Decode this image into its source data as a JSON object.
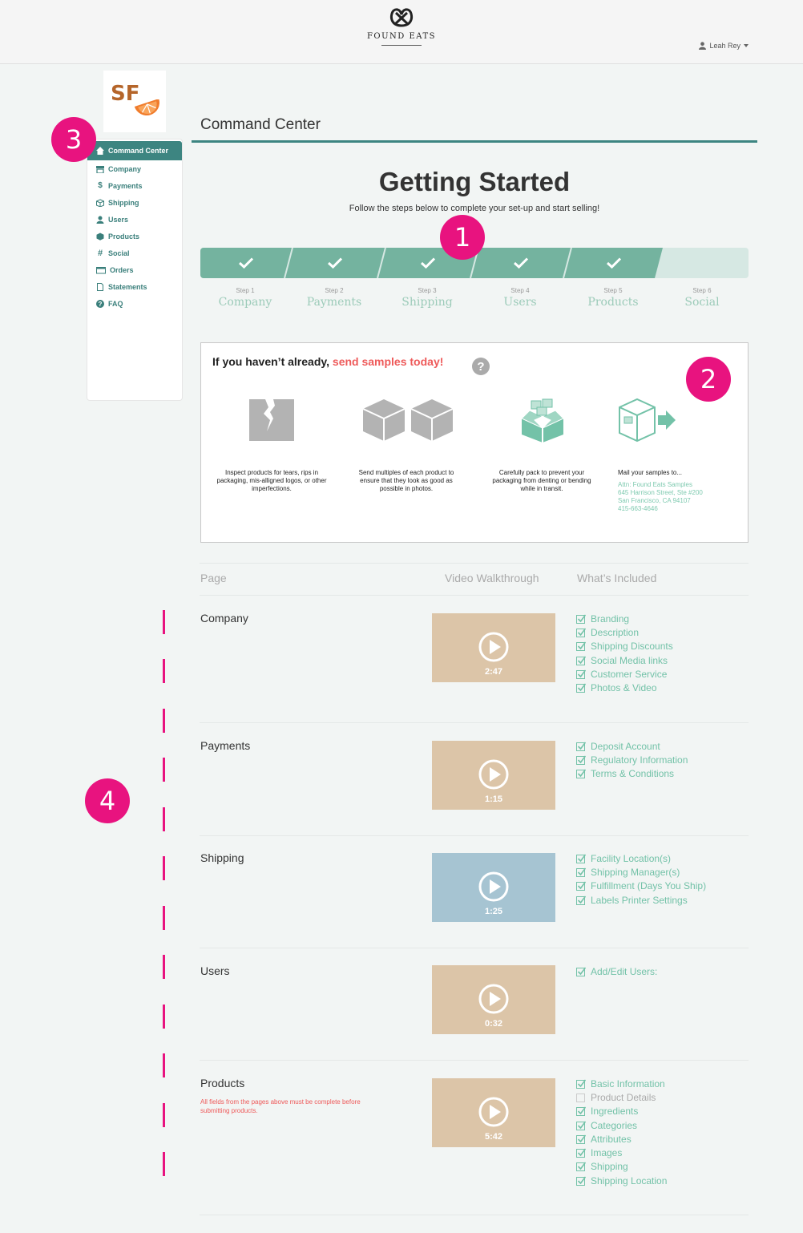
{
  "header": {
    "brand": "FOUND EATS",
    "user": "Leah Rey"
  },
  "sidebar": {
    "logo_text": "SF",
    "items": [
      {
        "label": "Command Center",
        "icon": "home-icon"
      },
      {
        "label": "Company",
        "icon": "store-icon"
      },
      {
        "label": "Payments",
        "icon": "dollar-icon"
      },
      {
        "label": "Shipping",
        "icon": "box-icon"
      },
      {
        "label": "Users",
        "icon": "user-icon"
      },
      {
        "label": "Products",
        "icon": "cube-icon"
      },
      {
        "label": "Social",
        "icon": "hashtag-icon"
      },
      {
        "label": "Orders",
        "icon": "wallet-icon"
      },
      {
        "label": "Statements",
        "icon": "document-icon"
      },
      {
        "label": "FAQ",
        "icon": "question-icon"
      }
    ]
  },
  "callouts": [
    "1",
    "2",
    "3",
    "4"
  ],
  "main": {
    "title": "Command Center",
    "getting_started": "Getting Started",
    "subtitle": "Follow the steps below to complete your set-up and start selling!"
  },
  "steps": [
    {
      "num": "Step 1",
      "name": "Company",
      "done": true
    },
    {
      "num": "Step 2",
      "name": "Payments",
      "done": true
    },
    {
      "num": "Step 3",
      "name": "Shipping",
      "done": true
    },
    {
      "num": "Step 4",
      "name": "Users",
      "done": true
    },
    {
      "num": "Step 5",
      "name": "Products",
      "done": true
    },
    {
      "num": "Step 6",
      "name": "Social",
      "done": false
    }
  ],
  "samples": {
    "heading": "If you haven’t already, ",
    "heading_highlight": "send samples today!",
    "help": "?",
    "tips": [
      "Inspect products for tears, rips in packaging, mis-alligned logos, or other imperfections.",
      "Send multiples of each product to ensure that they look as good as possible in photos.",
      "Carefully pack to prevent your packaging from denting or bending while in transit.",
      "Mail your samples to..."
    ],
    "address": [
      "Attn: Found Eats Samples",
      "645 Harrison Street, Ste #200",
      "San Francisco, CA 94107",
      "415-663-4646"
    ]
  },
  "table": {
    "headers": {
      "page": "Page",
      "video": "Video Walkthrough",
      "included": "What’s Included"
    },
    "rows": [
      {
        "title": "Company",
        "duration": "2:47",
        "color": "#dcc5a8",
        "items": [
          {
            "label": "Branding",
            "checked": true
          },
          {
            "label": "Description",
            "checked": true
          },
          {
            "label": "Shipping Discounts",
            "checked": true
          },
          {
            "label": "Social Media links",
            "checked": true
          },
          {
            "label": "Customer Service",
            "checked": true
          },
          {
            "label": "Photos & Video",
            "checked": true
          }
        ]
      },
      {
        "title": "Payments",
        "duration": "1:15",
        "color": "#dcc5a8",
        "items": [
          {
            "label": "Deposit Account",
            "checked": true
          },
          {
            "label": "Regulatory Information",
            "checked": true
          },
          {
            "label": "Terms & Conditions",
            "checked": true
          }
        ]
      },
      {
        "title": "Shipping",
        "duration": "1:25",
        "color": "#a6c4d2",
        "items": [
          {
            "label": "Facility Location(s)",
            "checked": true
          },
          {
            "label": "Shipping Manager(s)",
            "checked": true
          },
          {
            "label": "Fulfillment (Days You Ship)",
            "checked": true
          },
          {
            "label": "Labels Printer Settings",
            "checked": true
          }
        ]
      },
      {
        "title": "Users",
        "duration": "0:32",
        "color": "#dcc5a8",
        "items": [
          {
            "label": "Add/Edit Users:",
            "checked": true
          }
        ]
      },
      {
        "title": "Products",
        "duration": "5:42",
        "color": "#dcc5a8",
        "note": "All fields from the pages above must be complete before submitting products.",
        "items": [
          {
            "label": "Basic Information",
            "checked": true
          },
          {
            "label": "Product Details",
            "checked": false
          },
          {
            "label": "Ingredients",
            "checked": true
          },
          {
            "label": "Categories",
            "checked": true
          },
          {
            "label": "Attributes",
            "checked": true
          },
          {
            "label": "Images",
            "checked": true
          },
          {
            "label": "Shipping",
            "checked": true
          },
          {
            "label": "Shipping Location",
            "checked": true
          }
        ]
      }
    ]
  },
  "colors": {
    "accent": "#3d8581",
    "step_done": "#74b39f",
    "step_todo": "#d6e8e3",
    "callout": "#e8137f",
    "highlight": "#ee5a5a",
    "included": "#73c2a8"
  }
}
